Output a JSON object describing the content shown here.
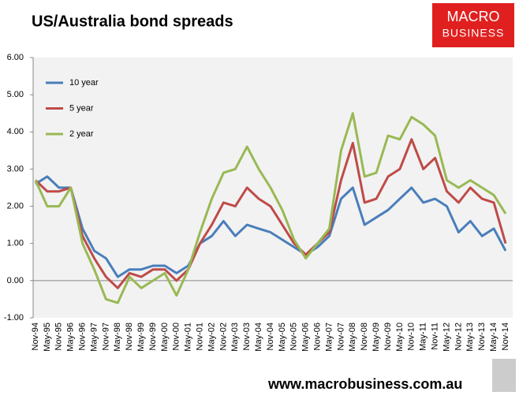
{
  "chart_data": {
    "type": "line",
    "title": "US/Australia bond spreads",
    "logo": {
      "line1": "MACRO",
      "line2": "BUSINESS"
    },
    "footer": "www.macrobusiness.com.au",
    "categories": [
      "Nov-94",
      "May-95",
      "Nov-95",
      "May-96",
      "Nov-96",
      "May-97",
      "Nov-97",
      "May-98",
      "Nov-98",
      "May-99",
      "Nov-99",
      "May-00",
      "Nov-00",
      "May-01",
      "Nov-01",
      "May-02",
      "Nov-02",
      "May-03",
      "Nov-03",
      "May-04",
      "Nov-04",
      "May-05",
      "Nov-05",
      "May-06",
      "Nov-06",
      "May-07",
      "Nov-07",
      "May-08",
      "Nov-08",
      "May-09",
      "Nov-09",
      "May-10",
      "Nov-10",
      "May-11",
      "Nov-11",
      "May-12",
      "Nov-12",
      "May-13",
      "Nov-13",
      "May-14",
      "Nov-14"
    ],
    "series": [
      {
        "name": "10 year",
        "color": "#4a7ebb",
        "values": [
          2.6,
          2.8,
          2.5,
          2.5,
          1.4,
          0.8,
          0.6,
          0.1,
          0.3,
          0.3,
          0.4,
          0.4,
          0.2,
          0.4,
          1.0,
          1.2,
          1.6,
          1.2,
          1.5,
          1.4,
          1.3,
          1.1,
          0.9,
          0.7,
          0.9,
          1.2,
          2.2,
          2.5,
          1.5,
          1.7,
          1.9,
          2.2,
          2.5,
          2.1,
          2.2,
          2.0,
          1.3,
          1.6,
          1.2,
          1.4,
          0.8
        ]
      },
      {
        "name": "5 year",
        "color": "#be4b48",
        "values": [
          2.7,
          2.4,
          2.4,
          2.5,
          1.2,
          0.6,
          0.1,
          -0.2,
          0.2,
          0.1,
          0.3,
          0.3,
          0.0,
          0.3,
          1.0,
          1.5,
          2.1,
          2.0,
          2.5,
          2.2,
          2.0,
          1.5,
          1.0,
          0.7,
          1.0,
          1.3,
          2.7,
          3.7,
          2.1,
          2.2,
          2.8,
          3.0,
          3.8,
          3.0,
          3.3,
          2.4,
          2.1,
          2.5,
          2.2,
          2.1,
          1.0
        ]
      },
      {
        "name": "2 year",
        "color": "#98b954",
        "values": [
          2.7,
          2.0,
          2.0,
          2.5,
          1.0,
          0.3,
          -0.5,
          -0.6,
          0.1,
          -0.2,
          0.0,
          0.2,
          -0.4,
          0.3,
          1.3,
          2.2,
          2.9,
          3.0,
          3.6,
          3.0,
          2.5,
          1.9,
          1.1,
          0.6,
          1.0,
          1.4,
          3.5,
          4.5,
          2.8,
          2.9,
          3.9,
          3.8,
          4.4,
          4.2,
          3.9,
          2.7,
          2.5,
          2.7,
          2.5,
          2.3,
          1.8
        ]
      }
    ],
    "ylim": [
      -1,
      6
    ],
    "yticks": [
      {
        "value": -1,
        "label": "-1.00"
      },
      {
        "value": 0,
        "label": "0.00"
      },
      {
        "value": 1,
        "label": "1.00"
      },
      {
        "value": 2,
        "label": "2.00"
      },
      {
        "value": 3,
        "label": "3.00"
      },
      {
        "value": 4,
        "label": "4.00"
      },
      {
        "value": 5,
        "label": "5.00"
      },
      {
        "value": 6,
        "label": "6.00"
      }
    ],
    "legend": "upper-left"
  }
}
